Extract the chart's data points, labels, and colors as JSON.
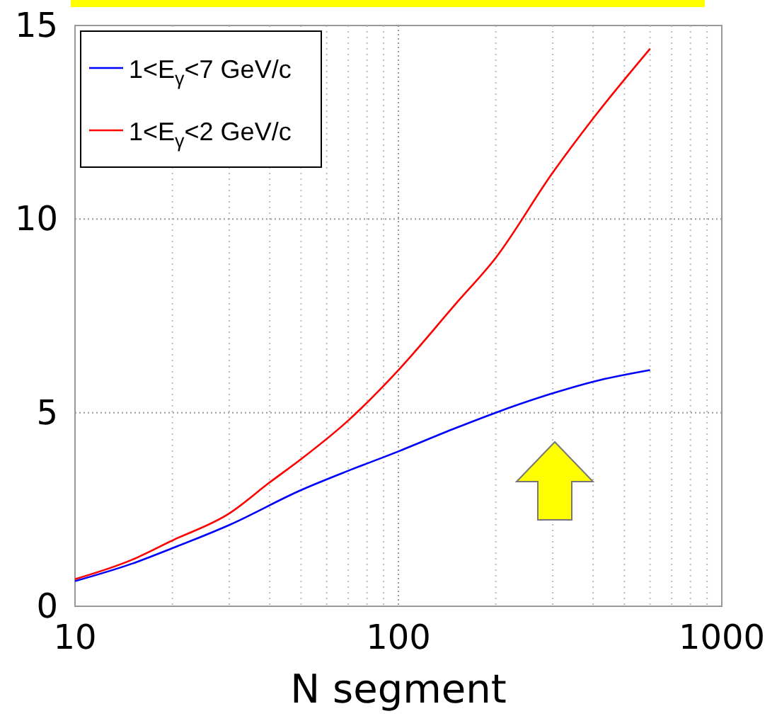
{
  "chart_data": {
    "type": "line",
    "xlabel": "N segment",
    "log": "x",
    "xlim": [
      10,
      1000
    ],
    "xticks": [
      10,
      100,
      1000
    ],
    "ylim": [
      0,
      15
    ],
    "yticks": [
      0,
      5,
      10,
      15
    ],
    "grid": true,
    "legend": "top left",
    "line_style": "solid",
    "marker": "none",
    "series": [
      {
        "name": "1<E$_{γ}$<7 GeV/c",
        "color": "#0000ff",
        "x": [
          10,
          15,
          20,
          30,
          50,
          70,
          100,
          150,
          200,
          300,
          400,
          600
        ],
        "values": [
          0.65,
          1.1,
          1.5,
          2.1,
          3.0,
          3.5,
          4.0,
          4.6,
          5.0,
          5.5,
          5.8,
          6.1
        ]
      },
      {
        "name": "1<E$_{γ}$<2 GeV/c",
        "color": "#ff0000",
        "x": [
          10,
          15,
          20,
          30,
          40,
          50,
          70,
          100,
          150,
          200,
          300,
          400,
          600
        ],
        "values": [
          0.7,
          1.2,
          1.7,
          2.4,
          3.2,
          3.8,
          4.8,
          6.1,
          7.8,
          9.0,
          11.2,
          12.6,
          14.4
        ]
      }
    ]
  }
}
